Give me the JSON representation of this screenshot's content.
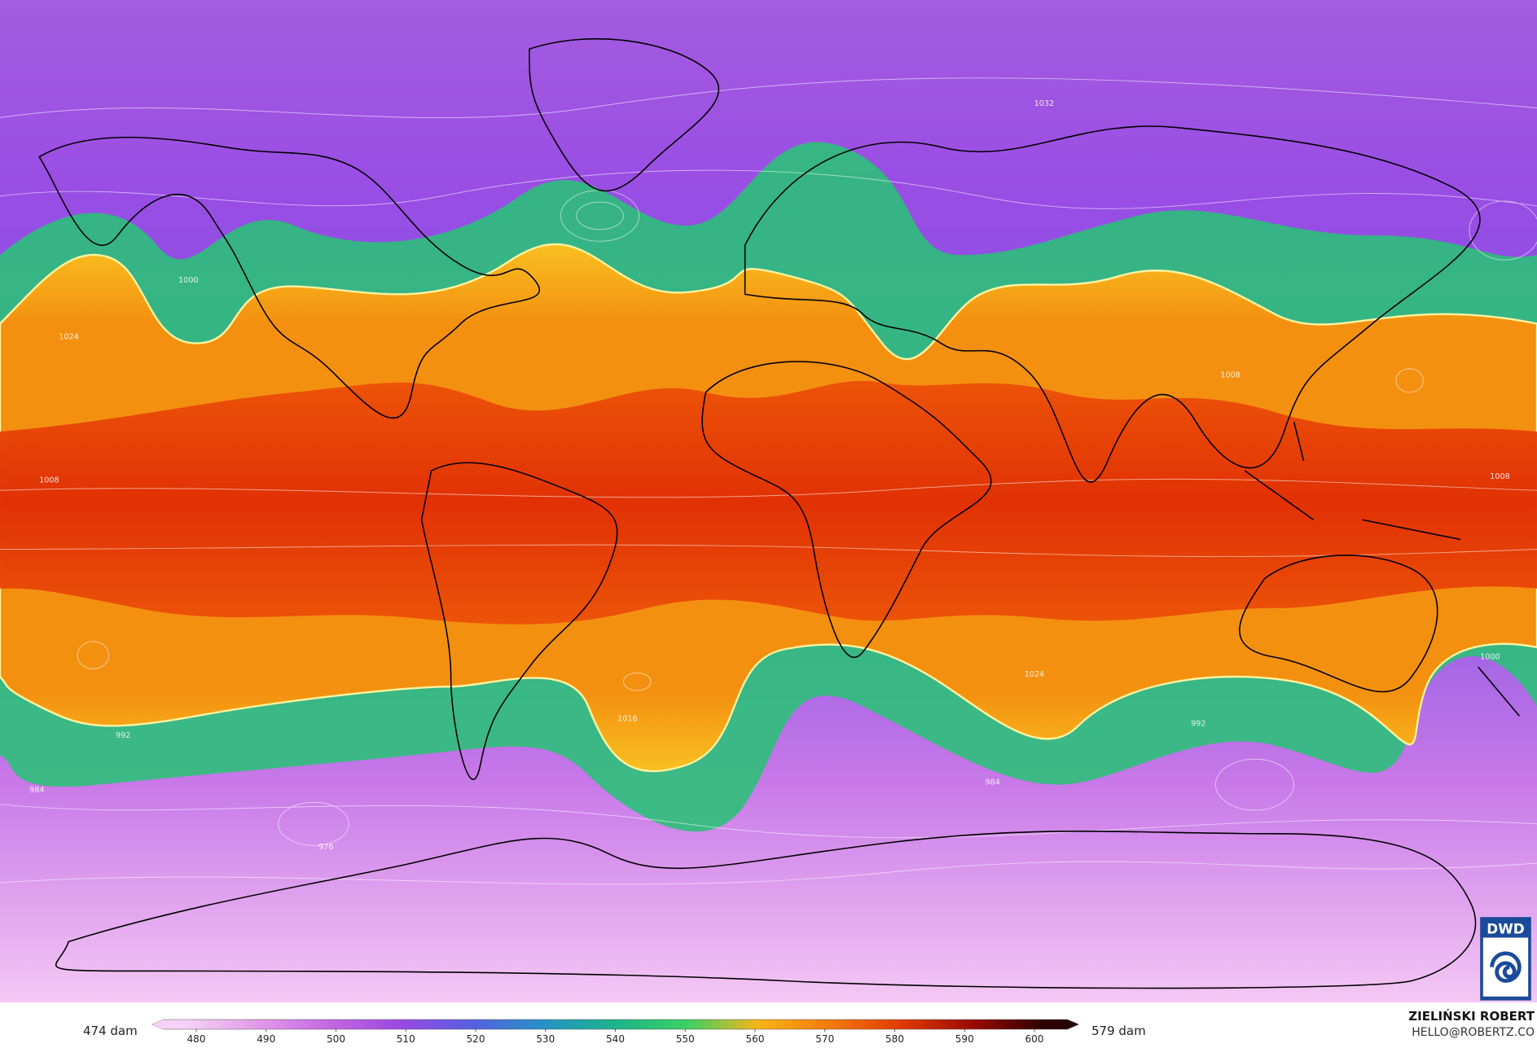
{
  "map": {
    "isobar_labels": [
      "1008",
      "1024",
      "1000",
      "992",
      "984",
      "976",
      "1016",
      "1032",
      "1008",
      "1000",
      "992",
      "1024",
      "984",
      "1008"
    ]
  },
  "colorbar": {
    "min_label": "474 dam",
    "max_label": "579 dam",
    "ticks": [
      480,
      490,
      500,
      510,
      520,
      530,
      540,
      550,
      560,
      570,
      580,
      590,
      600
    ],
    "colors": [
      "#f6d2f6",
      "#e29ae8",
      "#c468e2",
      "#9a48e2",
      "#5660e0",
      "#2692c6",
      "#1cb48a",
      "#3ad064",
      "#f8b418",
      "#f27a08",
      "#e03a04",
      "#9a0a02",
      "#2a0000"
    ]
  },
  "credit": {
    "name": "ZIELIŃSKI ROBERT",
    "email": "HELLO@ROBERTZ.CO"
  },
  "logo": "DWD"
}
